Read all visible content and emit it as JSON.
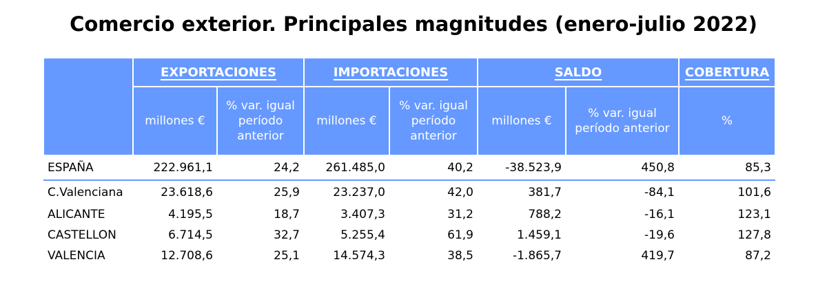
{
  "title": "Comercio exterior. Principales magnitudes (enero-julio 2022)",
  "colors": {
    "header_bg": "#6699ff",
    "header_text": "#ffffff",
    "separator": "#6699ff"
  },
  "groups": {
    "exportaciones": "EXPORTACIONES",
    "importaciones": "IMPORTACIONES",
    "saldo": "SALDO",
    "cobertura": "COBERTURA"
  },
  "subheaders": {
    "exp_millones": "millones €",
    "exp_var": "% var. igual\nperíodo\nanterior",
    "imp_millones": "millones €",
    "imp_var": "% var. igual\nperíodo\nanterior",
    "saldo_millones": "millones €",
    "saldo_var": "% var. igual\nperíodo anterior",
    "cob_pct": "%"
  },
  "rows": [
    {
      "name": "ESPAÑA",
      "exp_mill": "222.961,1",
      "exp_var": "24,2",
      "imp_mill": "261.485,0",
      "imp_var": "40,2",
      "saldo_mill": "-38.523,9",
      "saldo_var": "450,8",
      "cobertura": "85,3"
    },
    {
      "name": "C.Valenciana",
      "exp_mill": "23.618,6",
      "exp_var": "25,9",
      "imp_mill": "23.237,0",
      "imp_var": "42,0",
      "saldo_mill": "381,7",
      "saldo_var": "-84,1",
      "cobertura": "101,6"
    },
    {
      "name": "ALICANTE",
      "exp_mill": "4.195,5",
      "exp_var": "18,7",
      "imp_mill": "3.407,3",
      "imp_var": "31,2",
      "saldo_mill": "788,2",
      "saldo_var": "-16,1",
      "cobertura": "123,1"
    },
    {
      "name": "CASTELLON",
      "exp_mill": "6.714,5",
      "exp_var": "32,7",
      "imp_mill": "5.255,4",
      "imp_var": "61,9",
      "saldo_mill": "1.459,1",
      "saldo_var": "-19,6",
      "cobertura": "127,8"
    },
    {
      "name": "VALENCIA",
      "exp_mill": "12.708,6",
      "exp_var": "25,1",
      "imp_mill": "14.574,3",
      "imp_var": "38,5",
      "saldo_mill": "-1.865,7",
      "saldo_var": "419,7",
      "cobertura": "87,2"
    }
  ]
}
